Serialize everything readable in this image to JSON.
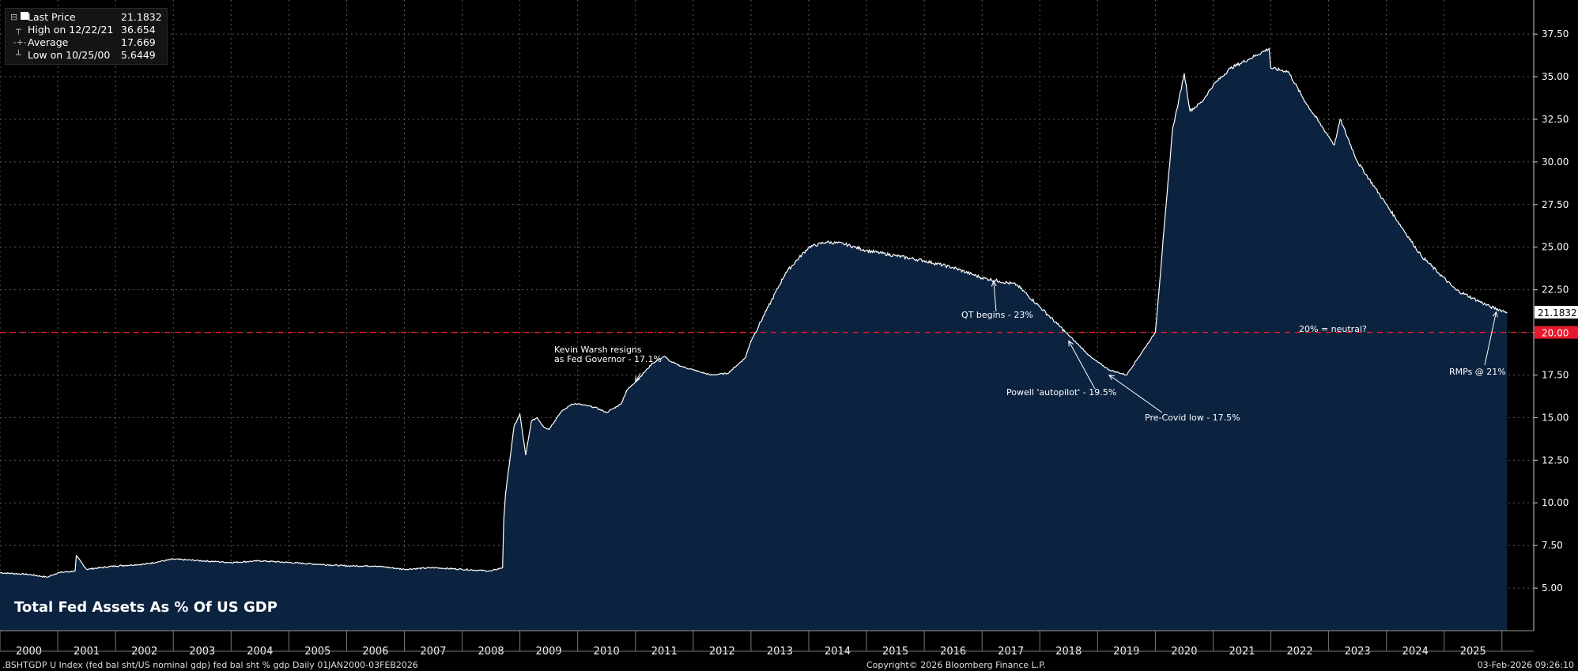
{
  "legend": {
    "rows": [
      {
        "label": "Last Price",
        "value": "21.1832"
      },
      {
        "label": "High on 12/22/21",
        "value": "36.654"
      },
      {
        "label": "Average",
        "value": "17.669"
      },
      {
        "label": "Low on 10/25/00",
        "value": "5.6449"
      }
    ]
  },
  "footer": {
    "left": ".BSHTGDP U Index (fed bal sht/US nominal gdp) fed bal sht % gdp Daily 01JAN2000-03FEB2026",
    "center": "Copyright© 2026 Bloomberg Finance L.P.",
    "right": "03-Feb-2026 09:26:10"
  },
  "colors": {
    "background": "#000000",
    "area_fill": "#0c2340",
    "line": "#ffffff",
    "neutral_line": "#e8192c",
    "grid": "#5a5a5a"
  },
  "chart_data": {
    "type": "area",
    "title": "Total Fed Assets As % Of US GDP",
    "x_categories": [
      "2000",
      "2001",
      "2002",
      "2003",
      "2004",
      "2005",
      "2006",
      "2007",
      "2008",
      "2009",
      "2010",
      "2011",
      "2012",
      "2013",
      "2014",
      "2015",
      "2016",
      "2017",
      "2018",
      "2019",
      "2020",
      "2021",
      "2022",
      "2023",
      "2024",
      "2025"
    ],
    "ylim": [
      2.5,
      39.5
    ],
    "y_ticks": [
      "5.00",
      "7.50",
      "10.00",
      "12.50",
      "15.00",
      "17.50",
      "20.00",
      "22.50",
      "25.00",
      "27.50",
      "30.00",
      "32.50",
      "35.00",
      "37.50"
    ],
    "series": [
      {
        "x": [
          2000.0,
          2000.5,
          2000.82,
          2001.0,
          2001.3,
          2001.32,
          2001.5,
          2002.0,
          2002.5,
          2003.0,
          2003.5,
          2004.0,
          2004.5,
          2005.0,
          2005.5,
          2006.0,
          2006.5,
          2007.0,
          2007.5,
          2008.0,
          2008.5,
          2008.7,
          2008.72,
          2008.75,
          2008.9,
          2009.0,
          2009.1,
          2009.2,
          2009.3,
          2009.4,
          2009.5,
          2009.7,
          2009.9,
          2010.0,
          2010.3,
          2010.5,
          2010.75,
          2010.85,
          2011.0,
          2011.3,
          2011.5,
          2011.6,
          2011.8,
          2012.0,
          2012.3,
          2012.6,
          2012.9,
          2013.0,
          2013.3,
          2013.6,
          2014.0,
          2014.3,
          2014.6,
          2014.8,
          2015.0,
          2015.5,
          2016.0,
          2016.5,
          2017.0,
          2017.3,
          2017.6,
          2018.0,
          2018.3,
          2018.6,
          2018.9,
          2019.2,
          2019.5,
          2019.7,
          2019.9,
          2020.0,
          2020.2,
          2020.3,
          2020.4,
          2020.5,
          2020.6,
          2020.8,
          2021.0,
          2021.3,
          2021.6,
          2021.97,
          2022.0,
          2022.3,
          2022.6,
          2022.9,
          2023.0,
          2023.1,
          2023.2,
          2023.5,
          2023.8,
          2024.0,
          2024.3,
          2024.6,
          2024.9,
          2025.2,
          2025.5,
          2025.8,
          2026.09
        ],
        "y": [
          5.9,
          5.8,
          5.64,
          5.9,
          6.0,
          6.9,
          6.1,
          6.3,
          6.4,
          6.7,
          6.6,
          6.5,
          6.6,
          6.5,
          6.4,
          6.3,
          6.3,
          6.1,
          6.2,
          6.1,
          6.0,
          6.2,
          9.0,
          10.5,
          14.5,
          15.2,
          12.8,
          14.8,
          15.0,
          14.5,
          14.3,
          15.3,
          15.8,
          15.8,
          15.6,
          15.3,
          15.8,
          16.6,
          17.1,
          18.2,
          18.6,
          18.3,
          18.0,
          17.8,
          17.5,
          17.6,
          18.5,
          19.5,
          21.5,
          23.5,
          25.0,
          25.3,
          25.2,
          25.0,
          24.8,
          24.5,
          24.2,
          23.8,
          23.2,
          23.0,
          22.8,
          21.5,
          20.5,
          19.5,
          18.5,
          17.8,
          17.5,
          18.5,
          19.5,
          20.0,
          28.0,
          32.0,
          33.5,
          35.2,
          33.0,
          33.5,
          34.5,
          35.5,
          36.0,
          36.654,
          35.5,
          35.3,
          33.5,
          32.0,
          31.5,
          31.0,
          32.5,
          30.0,
          28.5,
          27.5,
          26.0,
          24.5,
          23.5,
          22.5,
          22.0,
          21.5,
          21.1832
        ]
      }
    ],
    "reference_line": {
      "value": 20.0,
      "label": "20.00"
    },
    "last_value_label": "21.1832",
    "annotations": [
      {
        "text": "QT begins - 23%",
        "x": 2017.2,
        "y": 23.0
      },
      {
        "text": "Kevin Warsh resigns",
        "x": 2011.0,
        "y": 17.1
      },
      {
        "text": "as Fed Governor - 17.1%",
        "x": 2011.0,
        "y": 17.1
      },
      {
        "text": "Powell 'autopilot' - 19.5%",
        "x": 2018.5,
        "y": 19.5
      },
      {
        "text": "Pre-Covid low - 17.5%",
        "x": 2019.2,
        "y": 17.5
      },
      {
        "text": "20% = neutral?",
        "x": 2022.5,
        "y": 20.2
      },
      {
        "text": "RMPs @ 21%",
        "x": 2025.9,
        "y": 21.2
      }
    ]
  }
}
